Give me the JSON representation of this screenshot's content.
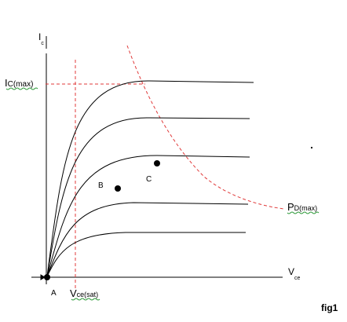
{
  "labels": {
    "ic_axis_main": "I",
    "ic_axis_sub": "c",
    "vce_axis_main": "V",
    "vce_axis_sub": "ce",
    "ic_max_main": "I",
    "ic_max_sub": "C(max)",
    "pd_max_main": "P",
    "pd_max_sub": "D(max)",
    "vce_sat_main": "V",
    "vce_sat_sub": "ce(sat)",
    "point_a": "A",
    "point_b": "B",
    "point_c": "C",
    "fig": "fig1"
  },
  "colors": {
    "axis": "#000000",
    "curve": "#000000",
    "dashed": "#e03a3a",
    "spell_underline": "#2e9a3a"
  }
}
